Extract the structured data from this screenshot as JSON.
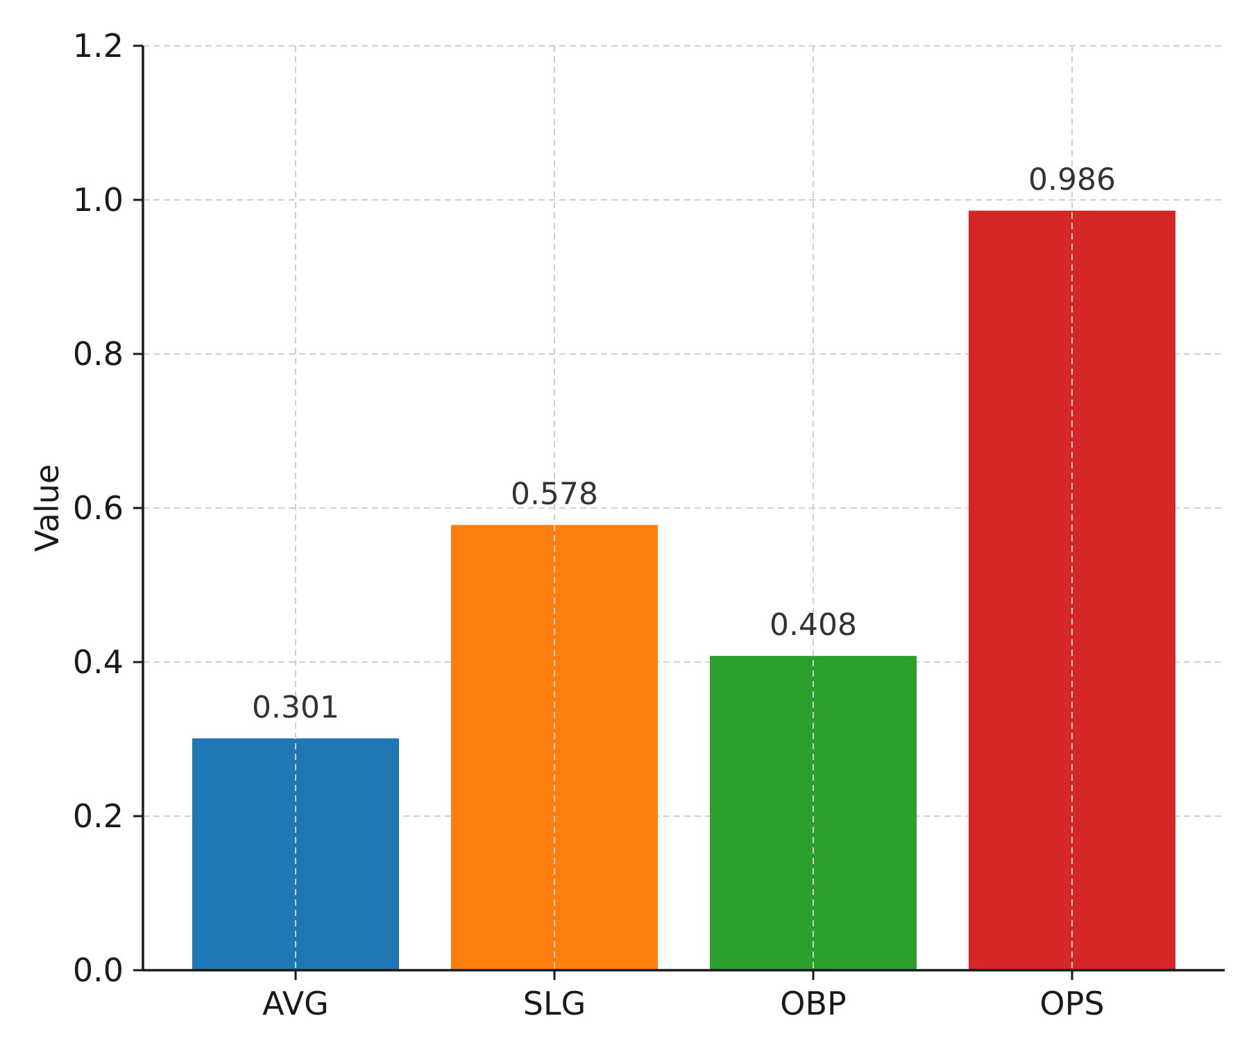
{
  "chart_data": {
    "type": "bar",
    "title": "",
    "xlabel": "",
    "ylabel": "Value",
    "categories": [
      "AVG",
      "SLG",
      "OBP",
      "OPS"
    ],
    "values": [
      0.301,
      0.578,
      0.408,
      0.986
    ],
    "value_labels": [
      "0.301",
      "0.578",
      "0.408",
      "0.986"
    ],
    "colors": [
      "#1f77b4",
      "#ff7f0e",
      "#2ca02c",
      "#d62728"
    ],
    "ylim": [
      0,
      1.2
    ],
    "yticks": [
      0.0,
      0.2,
      0.4,
      0.6,
      0.8,
      1.0,
      1.2
    ],
    "ytick_labels": [
      "0.0",
      "0.2",
      "0.4",
      "0.6",
      "0.8",
      "1.0",
      "1.2"
    ],
    "grid": true,
    "legend": "none"
  }
}
